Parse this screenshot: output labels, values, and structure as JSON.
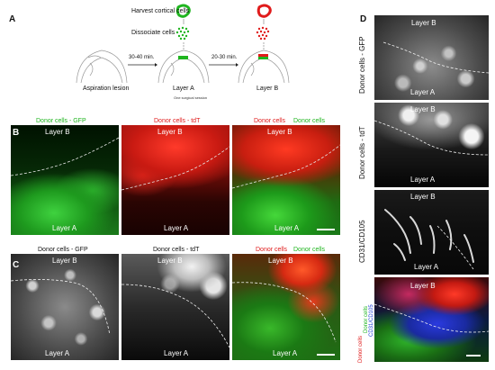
{
  "panel_letters": {
    "a": "A",
    "b": "B",
    "c": "C",
    "d": "D"
  },
  "schematic": {
    "harvest": "Harvest cortical cells",
    "dissociate": "Dissociate cells",
    "time1": "30-40 min.",
    "time2": "20-30 min.",
    "lesion": "Aspiration lesion",
    "layer_a": "Layer A",
    "session": "One surgical session",
    "layer_b": "Layer B"
  },
  "colors": {
    "gfp": "#1fb51f",
    "tdt": "#e01b1b",
    "cd31": "#1a3dd6",
    "text": "#111111"
  },
  "row_b": {
    "cap1": "Donor cells - GFP",
    "cap2": "Donor cells - tdT",
    "cap3a": "Donor cells",
    "cap3b": "Donor cells",
    "top": "Layer B",
    "bottom": "Layer A"
  },
  "row_c": {
    "cap1": "Donor cells - GFP",
    "cap2": "Donor cells - tdT",
    "cap3a": "Donor cells",
    "cap3b": "Donor cells",
    "top": "Layer B",
    "bottom": "Layer A"
  },
  "col_d": {
    "label1": "Donor cells - GFP",
    "label2": "Donor cells - tdT",
    "label3": "CD31/CD105",
    "label4a": "Donor cells",
    "label4b": "Donor cells",
    "label4c": "CD31/CD105",
    "top": "Layer B",
    "bottom": "Layer A"
  }
}
